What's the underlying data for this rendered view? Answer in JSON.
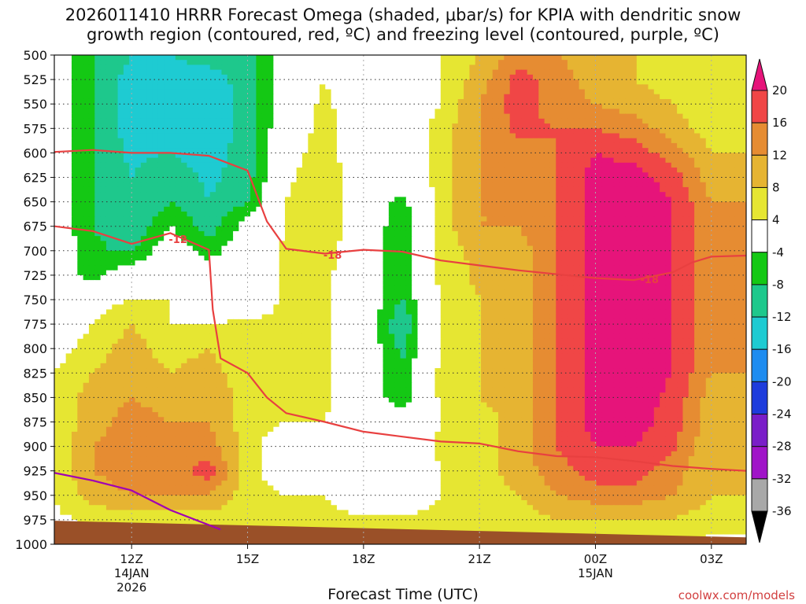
{
  "title": {
    "line1": "2026011410 HRRR Forecast Omega (shaded, μbar/s) for KPIA with dendritic snow",
    "line2": "growth region (contoured, red, ºC) and freezing level (contoured, purple, ºC)"
  },
  "footer": {
    "xaxis_title": "Forecast Time (UTC)",
    "credit": "coolwx.com/models"
  },
  "chart_data": {
    "type": "heatmap",
    "x_hours": [
      10,
      11,
      12,
      13,
      14,
      15,
      16,
      17,
      18,
      19,
      20,
      21,
      22,
      23,
      24,
      25,
      26,
      27
    ],
    "x_ticks": [
      {
        "hour": 12,
        "label": "12Z",
        "sub": [
          "14JAN",
          "2026"
        ]
      },
      {
        "hour": 15,
        "label": "15Z",
        "sub": []
      },
      {
        "hour": 18,
        "label": "18Z",
        "sub": []
      },
      {
        "hour": 21,
        "label": "21Z",
        "sub": []
      },
      {
        "hour": 24,
        "label": "00Z",
        "sub": [
          "15JAN"
        ]
      },
      {
        "hour": 27,
        "label": "03Z",
        "sub": []
      }
    ],
    "x_range": [
      10,
      27.9
    ],
    "y_levels": [
      500,
      525,
      550,
      575,
      600,
      625,
      650,
      675,
      700,
      725,
      750,
      775,
      800,
      825,
      850,
      875,
      900,
      925,
      950,
      975,
      1000
    ],
    "y_range": [
      500,
      1000
    ],
    "colorbar": {
      "levels": [
        -36,
        -32,
        -28,
        -24,
        -20,
        -16,
        -12,
        -8,
        -4,
        4,
        8,
        12,
        16,
        20
      ],
      "colors": [
        "#a8a8a8",
        "#a014c8",
        "#7a1ec8",
        "#1e3cdc",
        "#1e8cf0",
        "#1ecbd2",
        "#1ec88c",
        "#14c814",
        "#ffffff",
        "#e6e632",
        "#e6b432",
        "#e68c32",
        "#f04646",
        "#e6147a"
      ],
      "tick_labels": [
        "20",
        "16",
        "12",
        "8",
        "4",
        "-4",
        "-8",
        "-12",
        "-16",
        "-20",
        "-24",
        "-28",
        "-32",
        "-36"
      ]
    },
    "omega_grid": [
      [
        0,
        -8,
        -12,
        -12,
        -10,
        -10,
        0,
        3,
        0,
        0,
        4,
        8,
        14,
        12,
        10,
        8,
        6,
        4
      ],
      [
        0,
        -8,
        -14,
        -14,
        -14,
        -10,
        0,
        4,
        0,
        0,
        4,
        10,
        18,
        14,
        10,
        8,
        6,
        4
      ],
      [
        0,
        -8,
        -14,
        -13,
        -16,
        -10,
        0,
        5,
        0,
        0,
        4,
        12,
        18,
        14,
        12,
        10,
        8,
        5
      ],
      [
        0,
        -8,
        -14,
        -13,
        -15,
        -10,
        0,
        6,
        0,
        0,
        6,
        12,
        17,
        16,
        16,
        14,
        10,
        6
      ],
      [
        0,
        -8,
        -13,
        -12,
        -14,
        -10,
        2,
        6,
        0,
        0,
        6,
        12,
        14,
        16,
        20,
        18,
        14,
        8
      ],
      [
        0,
        -8,
        -12,
        -9,
        -13,
        -10,
        3,
        7,
        0,
        0,
        6,
        12,
        14,
        16,
        22,
        22,
        18,
        10
      ],
      [
        0,
        -8,
        -12,
        -8,
        -12,
        -8,
        4,
        8,
        0,
        -6,
        6,
        12,
        12,
        16,
        22,
        22,
        20,
        12
      ],
      [
        0,
        -8,
        -12,
        -4,
        -10,
        -2,
        4,
        7,
        0,
        -7,
        6,
        12,
        12,
        16,
        22,
        22,
        20,
        12
      ],
      [
        0,
        -7,
        -9,
        0,
        -6,
        0,
        5,
        6,
        0,
        -7,
        5,
        10,
        10,
        16,
        22,
        22,
        20,
        12
      ],
      [
        0,
        -6,
        0,
        0,
        0,
        0,
        5,
        5,
        0,
        -7,
        5,
        9,
        10,
        16,
        22,
        22,
        20,
        12
      ],
      [
        0,
        2,
        4,
        4,
        0,
        0,
        5,
        5,
        0,
        -8,
        5,
        8,
        10,
        16,
        22,
        22,
        20,
        12
      ],
      [
        0,
        4,
        8,
        4,
        4,
        5,
        5,
        5,
        0,
        -12,
        5,
        8,
        10,
        16,
        22,
        22,
        20,
        12
      ],
      [
        2,
        6,
        10,
        6,
        8,
        5,
        5,
        5,
        0,
        -9,
        5,
        8,
        10,
        16,
        22,
        22,
        20,
        12
      ],
      [
        4,
        8,
        10,
        8,
        10,
        5,
        5,
        5,
        0,
        -7,
        5,
        8,
        10,
        16,
        22,
        22,
        20,
        12
      ],
      [
        5,
        10,
        12,
        10,
        12,
        6,
        6,
        5,
        0,
        -7,
        5,
        8,
        10,
        16,
        22,
        22,
        19,
        10
      ],
      [
        5,
        10,
        14,
        12,
        12,
        6,
        4,
        4,
        0,
        0,
        4,
        6,
        10,
        16,
        22,
        22,
        18,
        10
      ],
      [
        5,
        12,
        14,
        13,
        14,
        6,
        0,
        0,
        0,
        0,
        5,
        6,
        10,
        16,
        20,
        20,
        17,
        8
      ],
      [
        5,
        12,
        14,
        14,
        18,
        6,
        0,
        0,
        0,
        0,
        4,
        6,
        10,
        14,
        18,
        18,
        14,
        8
      ],
      [
        4,
        10,
        12,
        12,
        12,
        6,
        4,
        4,
        0,
        0,
        4,
        6,
        8,
        12,
        14,
        14,
        12,
        8
      ],
      [
        3,
        5,
        6,
        6,
        6,
        5,
        5,
        5,
        5,
        5,
        5,
        5,
        6,
        8,
        8,
        8,
        8,
        6
      ],
      [
        3,
        3,
        3,
        3,
        3,
        3,
        3,
        3,
        3,
        3,
        3,
        3,
        3,
        3,
        3,
        3,
        3,
        3
      ]
    ],
    "contours": [
      {
        "name": "-12 C isotherm",
        "color": "#e84040",
        "label": "-12",
        "points": [
          [
            10,
            675
          ],
          [
            11,
            680
          ],
          [
            12,
            693
          ],
          [
            13,
            682
          ],
          [
            14,
            699
          ],
          [
            14.1,
            760
          ],
          [
            14.3,
            810
          ],
          [
            15,
            825
          ],
          [
            15.5,
            850
          ],
          [
            16,
            866
          ],
          [
            17,
            875
          ],
          [
            18,
            885
          ],
          [
            19,
            890
          ],
          [
            20,
            895
          ],
          [
            21,
            897
          ],
          [
            22,
            905
          ],
          [
            23,
            910
          ],
          [
            24,
            911
          ],
          [
            25,
            915
          ],
          [
            26,
            920
          ],
          [
            27,
            923
          ],
          [
            27.9,
            925
          ]
        ]
      },
      {
        "name": "-18 C isotherm",
        "color": "#e84040",
        "label": "-18",
        "points": [
          [
            10,
            599
          ],
          [
            11,
            597
          ],
          [
            12,
            600
          ],
          [
            13,
            600
          ],
          [
            14,
            603
          ],
          [
            15,
            618
          ],
          [
            15.5,
            670
          ],
          [
            16,
            698
          ],
          [
            17,
            703
          ],
          [
            18,
            699
          ],
          [
            19,
            701
          ],
          [
            20,
            710
          ],
          [
            21,
            715
          ],
          [
            22,
            720
          ],
          [
            23,
            724
          ],
          [
            24,
            728
          ],
          [
            25,
            730
          ],
          [
            26,
            722
          ],
          [
            26.5,
            712
          ],
          [
            27,
            706
          ],
          [
            27.9,
            705
          ]
        ]
      },
      {
        "name": "freezing level",
        "color": "#a000b4",
        "label": "",
        "points": [
          [
            10,
            927
          ],
          [
            11,
            935
          ],
          [
            12,
            945
          ],
          [
            13,
            965
          ],
          [
            14.3,
            985
          ]
        ]
      }
    ],
    "contour_labels": [
      {
        "text": "-12",
        "hour": 13.2,
        "pres": 688
      },
      {
        "text": "-18",
        "hour": 17.2,
        "pres": 704
      },
      {
        "text": "-18",
        "hour": 25.4,
        "pres": 729
      }
    ],
    "ground": {
      "color": "#9a5028",
      "start_hour_pres": [
        [
          10,
          976
        ],
        [
          27.9,
          993
        ]
      ]
    }
  }
}
